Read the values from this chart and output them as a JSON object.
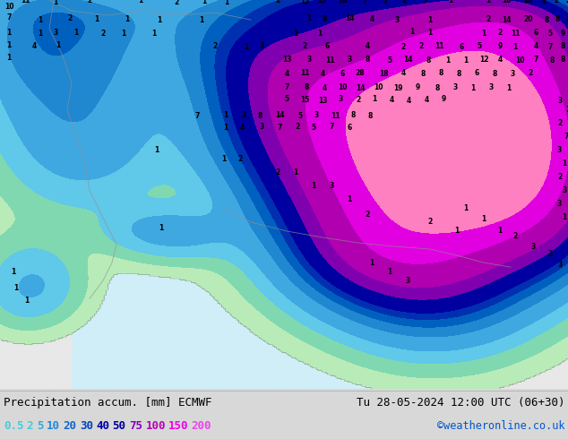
{
  "title_left": "Precipitation accum. [mm] ECMWF",
  "title_right": "Tu 28-05-2024 12:00 UTC (06+30)",
  "credit": "©weatheronline.co.uk",
  "legend_values": [
    "0.5",
    "2",
    "5",
    "10",
    "20",
    "30",
    "40",
    "50",
    "75",
    "100",
    "150",
    "200"
  ],
  "legend_colors_display": [
    "#44ccdd",
    "#44ccdd",
    "#33aadd",
    "#2288dd",
    "#1166cc",
    "#0044bb",
    "#0000aa",
    "#000099",
    "#8800bb",
    "#bb00bb",
    "#ee00ee",
    "#ee44ee"
  ],
  "precip_colors": [
    "#c8f0c8",
    "#a0e8b0",
    "#78d8f0",
    "#50b4e6",
    "#3296dc",
    "#1478d2",
    "#0050c8",
    "#0000be",
    "#0000a0",
    "#9600b4",
    "#c800c8",
    "#ff00ff",
    "#ff69b4"
  ],
  "land_color": "#e8e8e8",
  "sea_color": "#d0eef8",
  "bg_color": "#d8d8d8",
  "figsize": [
    6.34,
    4.9
  ],
  "dpi": 100
}
